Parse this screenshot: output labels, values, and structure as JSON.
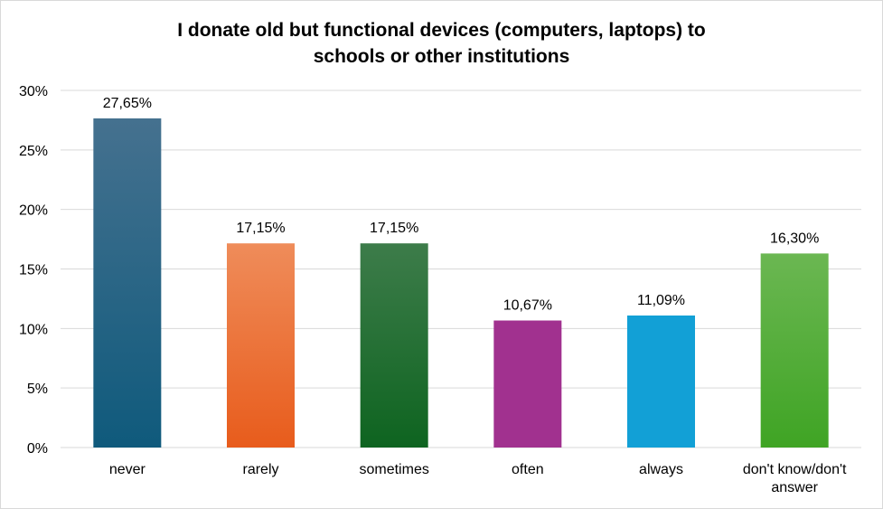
{
  "chart_data": {
    "type": "bar",
    "title_lines": [
      "I donate old but functional devices (computers, laptops) to",
      "schools or other institutions"
    ],
    "categories": [
      [
        "never"
      ],
      [
        "rarely"
      ],
      [
        "sometimes"
      ],
      [
        "often"
      ],
      [
        "always"
      ],
      [
        "don't know/don't",
        "answer"
      ]
    ],
    "values": [
      27.65,
      17.15,
      17.15,
      10.67,
      11.09,
      16.3
    ],
    "data_labels": [
      "27,65%",
      "17,15%",
      "17,15%",
      "10,67%",
      "11,09%",
      "16,30%"
    ],
    "y_ticks": [
      "0%",
      "5%",
      "10%",
      "15%",
      "20%",
      "25%",
      "30%"
    ],
    "ylim": [
      0,
      30
    ],
    "grid": true,
    "colors": [
      [
        "#45718f",
        "#0f5a7c"
      ],
      [
        "#ef8c5a",
        "#e85c1c"
      ],
      [
        "#3d7c4a",
        "#0e6420"
      ],
      [
        "#a1318f",
        "#a1318f"
      ],
      [
        "#12a0d6",
        "#12a0d6"
      ],
      [
        "#6bb752",
        "#3fa424"
      ]
    ]
  }
}
